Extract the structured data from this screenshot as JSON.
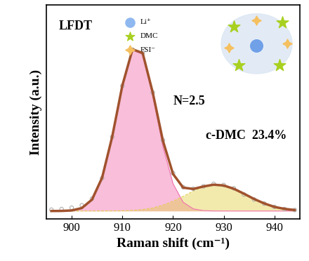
{
  "chart_data": {
    "type": "line",
    "xlabel": "Raman shift (cm⁻¹)",
    "ylabel": "Intensity (a.u.)",
    "annotations": {
      "sample": "LFDT",
      "n": "N=2.5",
      "component": "c-DMC  23.4%"
    },
    "key_labels": [
      "Li⁺",
      "DMC",
      "FSI⁻"
    ],
    "x": [
      896,
      898,
      900,
      902,
      904,
      906,
      908,
      910,
      912,
      914,
      916,
      918,
      920,
      922,
      924,
      926,
      928,
      930,
      932,
      934,
      936,
      938,
      940,
      942,
      944
    ],
    "series": [
      {
        "type": "area",
        "color": "#f06fae",
        "line_style": "solid",
        "values": [
          0.0,
          0.0005,
          0.0034,
          0.018,
          0.069,
          0.202,
          0.451,
          0.762,
          0.978,
          0.951,
          0.701,
          0.392,
          0.166,
          0.053,
          0.013,
          0.0024,
          0.0003,
          0.0,
          0.0,
          0.0,
          0.0,
          0.0,
          0.0,
          0.0,
          0.0
        ]
      },
      {
        "type": "area",
        "color": "#e3cf4a",
        "line_style": "dashed",
        "values": [
          0.0,
          0.0,
          0.0,
          0.0,
          0.0,
          0.0001,
          0.0005,
          0.0014,
          0.0036,
          0.0087,
          0.018,
          0.035,
          0.059,
          0.089,
          0.121,
          0.147,
          0.16,
          0.155,
          0.135,
          0.105,
          0.073,
          0.046,
          0.025,
          0.013,
          0.006
        ]
      },
      {
        "type": "scatter",
        "color": "#b0b0b0",
        "marker": "o",
        "values": [
          0.008,
          0.012,
          0.02,
          0.035,
          0.075,
          0.2,
          0.45,
          0.76,
          0.98,
          0.96,
          0.72,
          0.43,
          0.23,
          0.145,
          0.135,
          0.15,
          0.165,
          0.158,
          0.138,
          0.1,
          0.07,
          0.045,
          0.025,
          0.012,
          0.006
        ]
      },
      {
        "type": "line",
        "color": "#a0522d",
        "line_style": "solid",
        "values": [
          0.0,
          0.0005,
          0.0034,
          0.018,
          0.069,
          0.202,
          0.452,
          0.763,
          0.982,
          0.96,
          0.719,
          0.427,
          0.225,
          0.142,
          0.134,
          0.149,
          0.16,
          0.155,
          0.135,
          0.105,
          0.073,
          0.046,
          0.025,
          0.013,
          0.006
        ]
      }
    ],
    "xlim": [
      895,
      945
    ],
    "xticks": [
      900,
      910,
      920,
      930,
      940
    ],
    "ylim": [
      -0.05,
      1.25
    ],
    "yticks": [],
    "tick_labels": "x",
    "grid": false
  }
}
